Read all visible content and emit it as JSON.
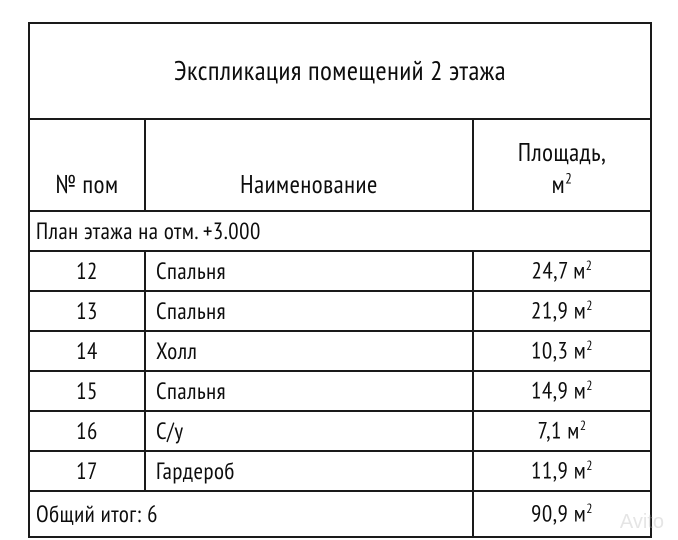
{
  "title": "Экспликация помещений 2 этажа",
  "columns": {
    "num": "№ пом",
    "name": "Наименование",
    "area_label": "Площадь,",
    "area_unit_base": "м",
    "area_unit_exp": "2"
  },
  "section_header": "План этажа на отм. +3.000",
  "unit_base": "м",
  "unit_exp": "2",
  "rows": [
    {
      "num": "12",
      "name": "Спальня",
      "area": "24,7"
    },
    {
      "num": "13",
      "name": "Спальня",
      "area": "21,9"
    },
    {
      "num": "14",
      "name": "Холл",
      "area": "10,3"
    },
    {
      "num": "15",
      "name": "Спальня",
      "area": "14,9"
    },
    {
      "num": "16",
      "name": "С/у",
      "area": "7,1"
    },
    {
      "num": "17",
      "name": "Гардероб",
      "area": "11,9"
    }
  ],
  "total": {
    "label": "Общий итог: 6",
    "area": "90,9"
  },
  "col_widths": {
    "num": 116,
    "name": 328,
    "area": 178
  },
  "colors": {
    "border": "#1a1a1a",
    "bg": "#ffffff",
    "page_bg": "#e2e4e3",
    "text": "#0d0d0d"
  },
  "watermark": "Avito"
}
